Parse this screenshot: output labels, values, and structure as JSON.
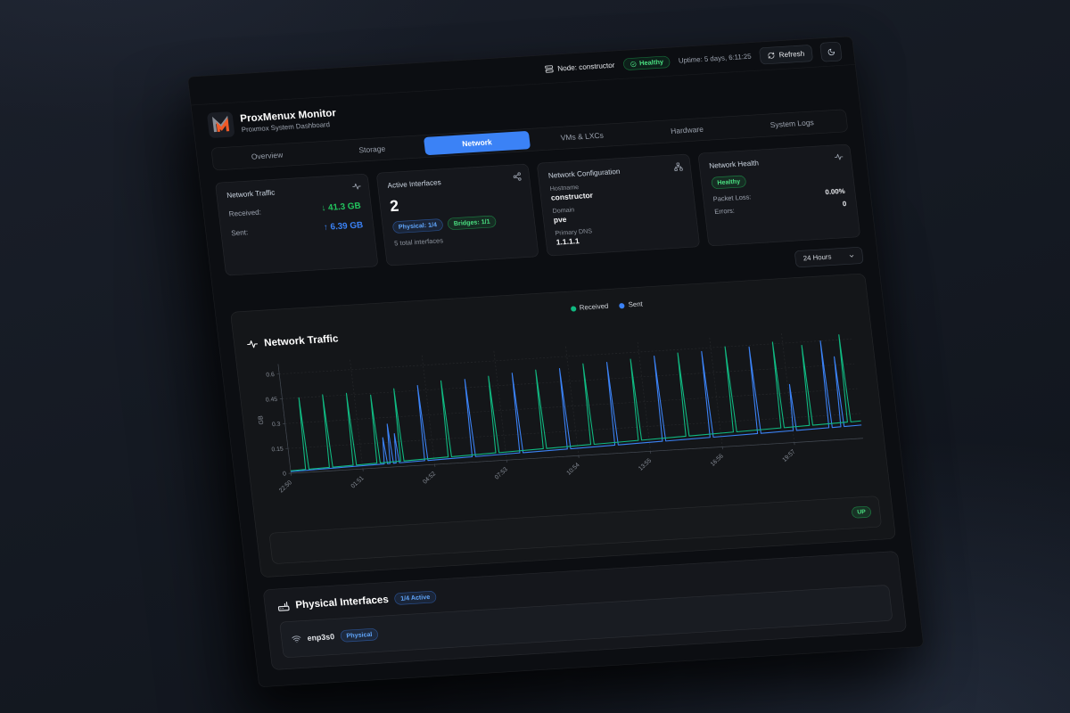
{
  "topbar": {
    "node_label": "Node: constructor",
    "health_badge": "Healthy",
    "uptime": "Uptime: 5 days, 6:11:25",
    "refresh_label": "Refresh",
    "icons": {
      "node": "server-icon",
      "health": "check-circle-icon",
      "refresh": "refresh-icon",
      "theme": "moon-icon"
    }
  },
  "header": {
    "title": "ProxMenux Monitor",
    "subtitle": "Proxmox System Dashboard"
  },
  "tabs": [
    {
      "label": "Overview",
      "active": false
    },
    {
      "label": "Storage",
      "active": false
    },
    {
      "label": "Network",
      "active": true
    },
    {
      "label": "VMs & LXCs",
      "active": false
    },
    {
      "label": "Hardware",
      "active": false
    },
    {
      "label": "System Logs",
      "active": false
    }
  ],
  "cards": {
    "traffic": {
      "title": "Network Traffic",
      "rows": [
        {
          "label": "Received:",
          "value": "↓ 41.3 GB",
          "color": "#22c55e"
        },
        {
          "label": "Sent:",
          "value": "↑ 6.39 GB",
          "color": "#3b82f6"
        }
      ]
    },
    "interfaces": {
      "title": "Active Interfaces",
      "count": "2",
      "badge_physical": "Physical: 1/4",
      "badge_bridges": "Bridges: 1/1",
      "footnote": "5 total interfaces"
    },
    "config": {
      "title": "Network Configuration",
      "fields": [
        {
          "label": "Hostname",
          "value": "constructor"
        },
        {
          "label": "Domain",
          "value": "pve"
        },
        {
          "label": "Primary DNS",
          "value": "1.1.1.1"
        }
      ]
    },
    "health": {
      "title": "Network Health",
      "status": "Healthy",
      "rows": [
        {
          "label": "Packet Loss:",
          "value": "0.00%"
        },
        {
          "label": "Errors:",
          "value": "0"
        }
      ]
    }
  },
  "time_range": {
    "value": "24 Hours"
  },
  "chart_section": {
    "title": "Network Traffic",
    "legend": [
      {
        "label": "Received",
        "color": "#10b981"
      },
      {
        "label": "Sent",
        "color": "#3b82f6"
      }
    ],
    "up_badge": "UP"
  },
  "chart_data": {
    "type": "line",
    "title": "Network Traffic",
    "xlabel": "",
    "ylabel": "GB",
    "ylim": [
      0,
      0.66
    ],
    "yticks": [
      0,
      0.15,
      0.3,
      0.45,
      0.6
    ],
    "hours": 24,
    "grid": true,
    "legend_position": "top-center",
    "xticks": [
      {
        "t": 0,
        "label": "22:50"
      },
      {
        "t": 3.017,
        "label": "01:51"
      },
      {
        "t": 6.033,
        "label": "04:52"
      },
      {
        "t": 9.05,
        "label": "07:53"
      },
      {
        "t": 12.067,
        "label": "10:54"
      },
      {
        "t": 15.083,
        "label": "13:55"
      },
      {
        "t": 18.1,
        "label": "16:56"
      },
      {
        "t": 21.117,
        "label": "19:57"
      }
    ],
    "series": [
      {
        "name": "Received",
        "color": "#10b981",
        "baseline": [
          0.015,
          0.105
        ],
        "spikes": [
          [
            0.7,
            0.45
          ],
          [
            1.7,
            0.46
          ],
          [
            2.7,
            0.46
          ],
          [
            3.7,
            0.44
          ],
          [
            4.7,
            0.47
          ],
          [
            6.7,
            0.5
          ],
          [
            8.7,
            0.51
          ],
          [
            10.7,
            0.53
          ],
          [
            12.7,
            0.55
          ],
          [
            14.7,
            0.56
          ],
          [
            16.7,
            0.58
          ],
          [
            18.7,
            0.6
          ],
          [
            20.7,
            0.61
          ],
          [
            21.9,
            0.58
          ],
          [
            23.5,
            0.63
          ]
        ]
      },
      {
        "name": "Sent",
        "color": "#3b82f6",
        "baseline": [
          0.01,
          0.08
        ],
        "spikes": [
          [
            4.0,
            0.18
          ],
          [
            4.25,
            0.26
          ],
          [
            4.5,
            0.2
          ],
          [
            5.7,
            0.48
          ],
          [
            7.7,
            0.5
          ],
          [
            9.7,
            0.52
          ],
          [
            11.7,
            0.53
          ],
          [
            13.7,
            0.55
          ],
          [
            15.7,
            0.57
          ],
          [
            17.7,
            0.58
          ],
          [
            19.7,
            0.59
          ],
          [
            21.2,
            0.35
          ],
          [
            22.7,
            0.6
          ],
          [
            23.2,
            0.5
          ]
        ]
      }
    ]
  },
  "physical": {
    "title": "Physical Interfaces",
    "badge": "1/4 Active",
    "rows": [
      {
        "name": "enp3s0",
        "type_badge": "Physical"
      }
    ]
  },
  "colors": {
    "accent_blue": "#3b82f6",
    "green": "#22c55e",
    "chart_green": "#10b981",
    "chart_blue": "#3b82f6",
    "logo_orange": "#f05a28",
    "logo_gray": "#8a8f98"
  }
}
